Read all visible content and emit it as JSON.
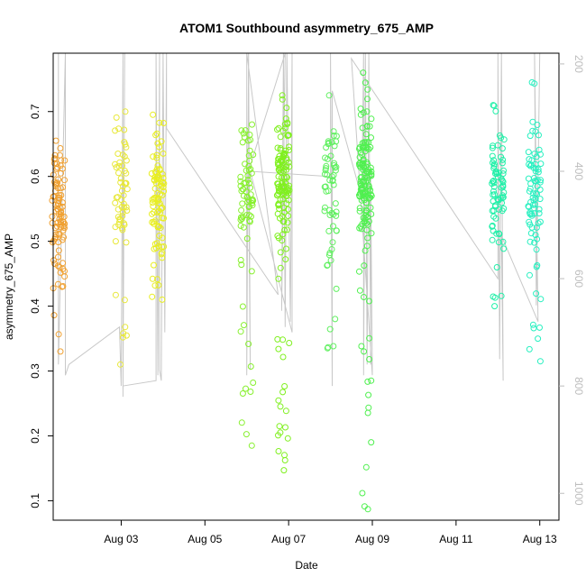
{
  "chart_data": {
    "type": "scatter",
    "title": "ATOM1 Southbound asymmetry_675_AMP",
    "xlabel": "Date",
    "ylabel": "asymmetry_675_AMP",
    "xlim": [
      "2023-08-01T09:00",
      "2023-08-13T11:00"
    ],
    "ylim": [
      0.07,
      0.79
    ],
    "x_ticks": [
      {
        "date": "2023-08-03",
        "label": "Aug 03"
      },
      {
        "date": "2023-08-05",
        "label": "Aug 05"
      },
      {
        "date": "2023-08-07",
        "label": "Aug 07"
      },
      {
        "date": "2023-08-09",
        "label": "Aug 09"
      },
      {
        "date": "2023-08-11",
        "label": "Aug 11"
      },
      {
        "date": "2023-08-13",
        "label": "Aug 13"
      }
    ],
    "y_ticks": [
      0.1,
      0.2,
      0.3,
      0.4,
      0.5,
      0.6,
      0.7
    ],
    "right_axis": {
      "range": [
        1050,
        180
      ],
      "reversed": true,
      "ticks": [
        200,
        400,
        600,
        800,
        1000
      ]
    },
    "grid": false,
    "point_clusters": [
      {
        "date": "2023-08-01T12:00",
        "color": "#f0a030",
        "y_min": 0.33,
        "y_max": 0.655,
        "y_center": 0.55,
        "n": 95
      },
      {
        "date": "2023-08-03T00:00",
        "color": "#e8e83a",
        "y_min": 0.31,
        "y_max": 0.7,
        "y_center": 0.57,
        "n": 60
      },
      {
        "date": "2023-08-03T21:00",
        "color": "#e8ee20",
        "y_min": 0.41,
        "y_max": 0.695,
        "y_center": 0.57,
        "n": 90
      },
      {
        "date": "2023-08-06T00:00",
        "color": "#88f030",
        "y_min": 0.185,
        "y_max": 0.68,
        "y_center": 0.58,
        "n": 75
      },
      {
        "date": "2023-08-06T21:00",
        "color": "#80f020",
        "y_min": 0.147,
        "y_max": 0.725,
        "y_center": 0.6,
        "n": 140
      },
      {
        "date": "2023-08-08T00:00",
        "color": "#60f060",
        "y_min": 0.335,
        "y_max": 0.725,
        "y_center": 0.58,
        "n": 60
      },
      {
        "date": "2023-08-08T20:00",
        "color": "#50f050",
        "y_min": 0.087,
        "y_max": 0.76,
        "y_center": 0.58,
        "n": 150
      },
      {
        "date": "2023-08-12T00:00",
        "color": "#20f0a8",
        "y_min": 0.4,
        "y_max": 0.71,
        "y_center": 0.58,
        "n": 75
      },
      {
        "date": "2023-08-12T21:00",
        "color": "#28f0c0",
        "y_min": 0.315,
        "y_max": 0.745,
        "y_center": 0.57,
        "n": 80
      }
    ],
    "line_series": {
      "color": "#c8c8c8",
      "description_axis": "right",
      "points": [
        [
          "2023-08-01T12:00",
          180
        ],
        [
          "2023-08-01T12:00",
          760
        ],
        [
          "2023-08-01T16:00",
          180
        ],
        [
          "2023-08-01T16:00",
          780
        ],
        [
          "2023-08-01T18:00",
          760
        ],
        [
          "2023-08-02T23:00",
          690
        ],
        [
          "2023-08-03T00:00",
          800
        ],
        [
          "2023-08-03T01:00",
          180
        ],
        [
          "2023-08-03T01:00",
          820
        ],
        [
          "2023-08-03T02:00",
          180
        ],
        [
          "2023-08-03T01:00",
          800
        ],
        [
          "2023-08-03T20:00",
          790
        ],
        [
          "2023-08-03T20:00",
          180
        ],
        [
          "2023-08-03T21:00",
          780
        ],
        [
          "2023-08-03T22:00",
          180
        ],
        [
          "2023-08-03T22:00",
          770
        ],
        [
          "2023-08-03T23:00",
          790
        ],
        [
          "2023-08-04T00:00",
          180
        ],
        [
          "2023-08-04T01:00",
          700
        ],
        [
          "2023-08-04T02:00",
          180
        ],
        [
          "2023-08-04T02:00",
          320
        ],
        [
          "2023-08-06T18:00",
          630
        ],
        [
          "2023-08-06T00:00",
          180
        ],
        [
          "2023-08-06T00:00",
          780
        ],
        [
          "2023-08-06T01:00",
          180
        ],
        [
          "2023-08-06T02:00",
          770
        ],
        [
          "2023-08-06T01:00",
          400
        ],
        [
          "2023-08-06T22:00",
          180
        ],
        [
          "2023-08-06T20:00",
          660
        ],
        [
          "2023-08-06T21:00",
          180
        ],
        [
          "2023-08-06T22:00",
          690
        ],
        [
          "2023-08-06T23:00",
          180
        ],
        [
          "2023-08-07T01:00",
          680
        ],
        [
          "2023-08-07T02:00",
          180
        ],
        [
          "2023-08-07T02:00",
          700
        ],
        [
          "2023-08-06T02:00",
          400
        ],
        [
          "2023-08-08T00:00",
          410
        ],
        [
          "2023-08-08T00:00",
          180
        ],
        [
          "2023-08-08T01:00",
          800
        ],
        [
          "2023-08-08T01:00",
          250
        ],
        [
          "2023-08-08T18:00",
          450
        ],
        [
          "2023-08-08T19:00",
          180
        ],
        [
          "2023-08-08T19:00",
          780
        ],
        [
          "2023-08-08T20:00",
          180
        ],
        [
          "2023-08-08T21:00",
          760
        ],
        [
          "2023-08-08T22:00",
          180
        ],
        [
          "2023-08-08T23:00",
          760
        ],
        [
          "2023-08-08T23:00",
          400
        ],
        [
          "2023-08-09T00:00",
          780
        ],
        [
          "2023-08-08T12:00",
          190
        ],
        [
          "2023-08-12T00:00",
          600
        ],
        [
          "2023-08-12T00:00",
          180
        ],
        [
          "2023-08-12T01:00",
          750
        ],
        [
          "2023-08-12T02:00",
          180
        ],
        [
          "2023-08-12T03:00",
          790
        ],
        [
          "2023-08-12T02:00",
          520
        ],
        [
          "2023-08-12T23:00",
          680
        ],
        [
          "2023-08-12T21:00",
          180
        ],
        [
          "2023-08-12T22:00",
          650
        ],
        [
          "2023-08-13T00:00",
          180
        ]
      ]
    }
  }
}
